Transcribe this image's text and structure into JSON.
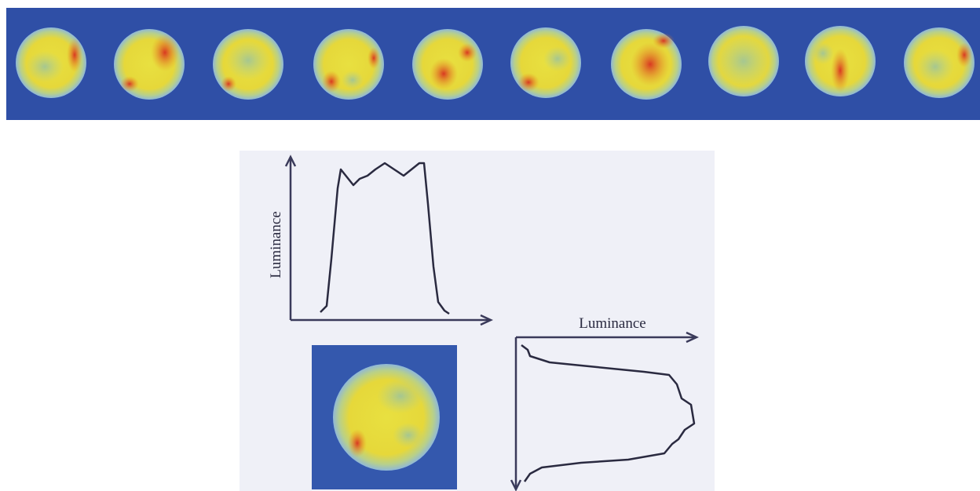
{
  "horizontal_profile": {
    "axis_label": "Luminance"
  },
  "vertical_profile": {
    "axis_label": "Luminance"
  }
}
